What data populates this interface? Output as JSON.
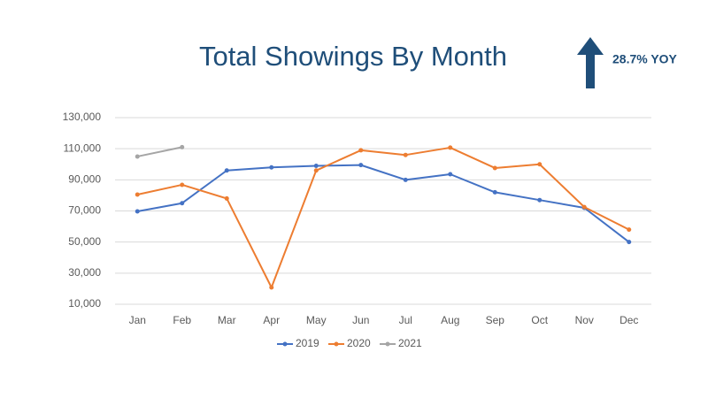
{
  "chart_data": {
    "type": "line",
    "title": "Total Showings By Month",
    "annotation": "28.7% YOY",
    "categories": [
      "Jan",
      "Feb",
      "Mar",
      "Apr",
      "May",
      "Jun",
      "Jul",
      "Aug",
      "Sep",
      "Oct",
      "Nov",
      "Dec"
    ],
    "series": [
      {
        "name": "2019",
        "color": "#4472c4",
        "values": [
          69700,
          75000,
          96000,
          98000,
          99000,
          99500,
          90000,
          93600,
          82000,
          77000,
          72000,
          50000
        ]
      },
      {
        "name": "2020",
        "color": "#ed7d31",
        "values": [
          80500,
          86800,
          78000,
          20800,
          96000,
          109000,
          106000,
          110700,
          97600,
          100000,
          72500,
          58000
        ]
      },
      {
        "name": "2021",
        "color": "#a5a5a5",
        "values": [
          105000,
          111000,
          null,
          null,
          null,
          null,
          null,
          null,
          null,
          null,
          null,
          null
        ]
      }
    ],
    "ylim": [
      10000,
      130000
    ],
    "yticks": [
      {
        "value": 10000,
        "label": "10,000"
      },
      {
        "value": 30000,
        "label": "30,000"
      },
      {
        "value": 50000,
        "label": "50,000"
      },
      {
        "value": 70000,
        "label": "70,000"
      },
      {
        "value": 90000,
        "label": "90,000"
      },
      {
        "value": 110000,
        "label": "110,000"
      },
      {
        "value": 130000,
        "label": "130,000"
      }
    ],
    "grid": true,
    "legend": "bottom"
  }
}
